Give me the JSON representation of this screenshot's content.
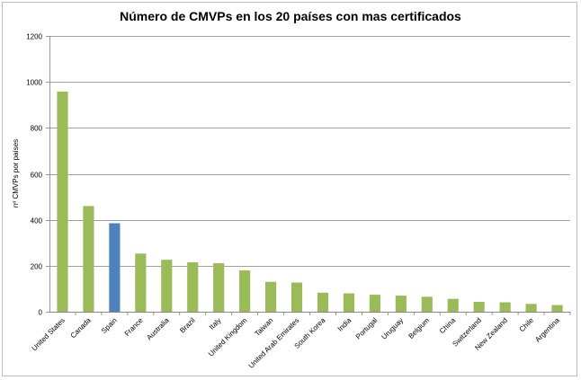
{
  "chart_data": {
    "type": "bar",
    "title": "Número de CMVPs en los 20 países con mas certificados",
    "xlabel": "",
    "ylabel": "nº CMVPs por países",
    "ylim": [
      0,
      1200
    ],
    "yticks": [
      0,
      200,
      400,
      600,
      800,
      1000,
      1200
    ],
    "grid": true,
    "categories": [
      "United States",
      "Canada",
      "Spain",
      "France",
      "Australia",
      "Brazil",
      "Italy",
      "United Kingdom",
      "Taiwan",
      "United Arab Emirates",
      "South Korea",
      "India",
      "Portugal",
      "Uruguay",
      "Belgium",
      "China",
      "Switzerland",
      "New Zealand",
      "Chile",
      "Argentina"
    ],
    "values": [
      958,
      460,
      385,
      253,
      226,
      215,
      211,
      180,
      130,
      127,
      83,
      80,
      74,
      70,
      65,
      56,
      43,
      41,
      34,
      29
    ],
    "colors": {
      "default": "#9bbb59",
      "highlight": "#4f81bd",
      "grid": "#808080"
    },
    "highlight_index": 2
  }
}
